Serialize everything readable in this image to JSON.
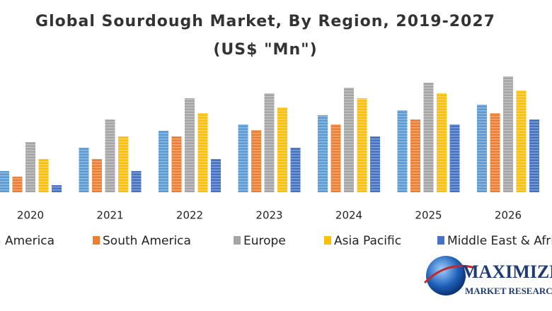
{
  "chart_data": {
    "type": "bar",
    "title": "Global Sourdough Market, By Region, 2019-2027",
    "subtitle": "(US$ \"Mn\")",
    "categories": [
      "2020",
      "2021",
      "2022",
      "2023",
      "2024",
      "2025",
      "2026"
    ],
    "ylim": [
      0,
      180
    ],
    "series": [
      {
        "name": "North America",
        "color": "#5b9bd5",
        "values": [
          30,
          63,
          87,
          96,
          109,
          116,
          124
        ]
      },
      {
        "name": "South America",
        "color": "#ed7d31",
        "values": [
          22,
          47,
          79,
          88,
          96,
          103,
          112
        ]
      },
      {
        "name": "Europe",
        "color": "#a5a5a5",
        "values": [
          71,
          103,
          133,
          140,
          148,
          155,
          164
        ]
      },
      {
        "name": "Asia Pacific",
        "color": "#ffc000",
        "values": [
          47,
          79,
          112,
          120,
          133,
          140,
          144
        ]
      },
      {
        "name": "Middle East & Africa",
        "color": "#4472c4",
        "values": [
          10,
          30,
          47,
          63,
          79,
          96,
          103
        ]
      }
    ]
  },
  "logo": {
    "name": "MAXIMIZE",
    "tagline": "MARKET RESEARCH"
  }
}
